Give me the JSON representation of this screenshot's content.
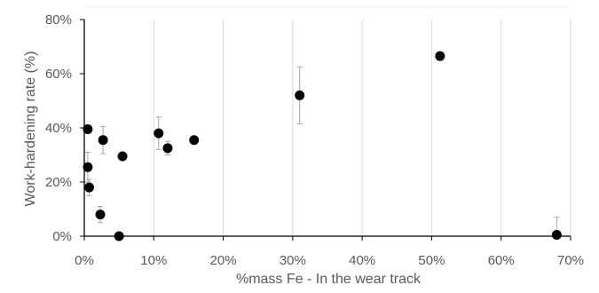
{
  "chart_data": {
    "type": "scatter",
    "title": "",
    "xlabel": "%mass Fe - In the wear track",
    "ylabel": "Work-hardening rate (%)",
    "xlim": [
      0,
      70
    ],
    "ylim": [
      0,
      80
    ],
    "x_ticks": [
      0,
      10,
      20,
      30,
      40,
      50,
      60,
      70
    ],
    "y_ticks": [
      0,
      20,
      40,
      60,
      80
    ],
    "x_tick_labels": [
      "0%",
      "10%",
      "20%",
      "30%",
      "40%",
      "50%",
      "60%",
      "70%"
    ],
    "y_tick_labels": [
      "0%",
      "20%",
      "40%",
      "60%",
      "80%"
    ],
    "grid": "vertical",
    "legend": "none",
    "colors": {
      "marker": "#000000",
      "error_bar": "#a6a6a6",
      "grid": "#d9d9d9",
      "axis": "#000000"
    },
    "series": [
      {
        "points": [
          {
            "x": 0.5,
            "y": 39.5,
            "err": 0
          },
          {
            "x": 0.5,
            "y": 25.5,
            "err": 5.5
          },
          {
            "x": 0.7,
            "y": 18.0,
            "err": 3.0
          },
          {
            "x": 2.3,
            "y": 8.0,
            "err": 3.0
          },
          {
            "x": 2.7,
            "y": 35.5,
            "err": 5.0
          },
          {
            "x": 5.0,
            "y": 0.0,
            "err": 0
          },
          {
            "x": 5.5,
            "y": 29.5,
            "err": 0
          },
          {
            "x": 10.7,
            "y": 38.0,
            "err": 6.0
          },
          {
            "x": 12.0,
            "y": 32.5,
            "err": 2.5
          },
          {
            "x": 15.8,
            "y": 35.5,
            "err": 0
          },
          {
            "x": 31.0,
            "y": 52.0,
            "err": 10.5
          },
          {
            "x": 51.2,
            "y": 66.5,
            "err": 0
          },
          {
            "x": 68.0,
            "y": 0.5,
            "err": 6.5
          }
        ]
      }
    ]
  }
}
